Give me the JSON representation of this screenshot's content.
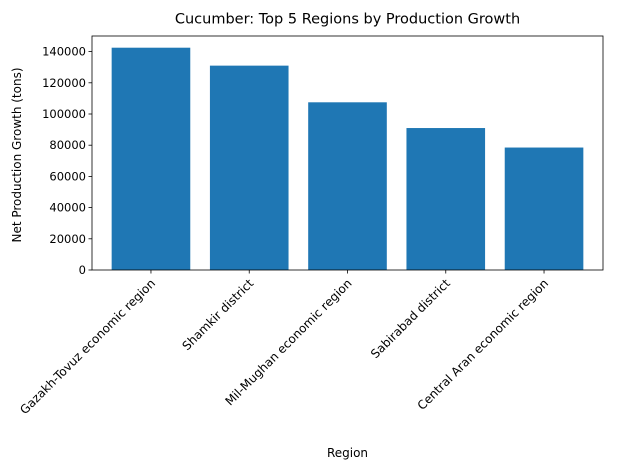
{
  "chart_data": {
    "type": "bar",
    "title": "Cucumber: Top 5 Regions by Production Growth",
    "xlabel": "Region",
    "ylabel": "Net Production Growth (tons)",
    "categories": [
      "Gazakh-Tovuz economic region",
      "Shamkir district",
      "Mil-Mughan economic region",
      "Sabirabad district",
      "Central Aran economic region"
    ],
    "values": [
      142500,
      131000,
      107500,
      91000,
      78500
    ],
    "ylim": [
      0,
      150000
    ],
    "yticks": [
      0,
      20000,
      40000,
      60000,
      80000,
      100000,
      120000,
      140000
    ],
    "bar_color": "#1f77b4",
    "grid": false,
    "legend": "none"
  }
}
